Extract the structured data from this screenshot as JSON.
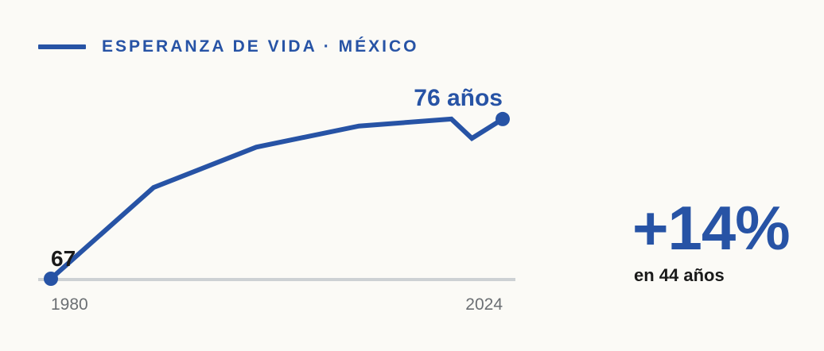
{
  "colors": {
    "series": "#2753a5",
    "baseline": "#cdd1d4",
    "axis_text": "#6b6f73",
    "dark_text": "#1a1a1a"
  },
  "legend": {
    "label": "ESPERANZA DE VIDA · MÉXICO"
  },
  "chart_data": {
    "type": "line",
    "series": [
      {
        "name": "ESPERANZA DE VIDA · MÉXICO",
        "x": [
          1980,
          1990,
          2000,
          2010,
          2019,
          2021,
          2024
        ],
        "y": [
          67,
          72.2,
          74.5,
          75.7,
          76.1,
          75.0,
          76.1
        ]
      }
    ],
    "xlim": [
      1980,
      2024
    ],
    "ylim": [
      67,
      77
    ],
    "x_tick_labels": [
      "1980",
      "2024"
    ],
    "annotations": {
      "start_label": "67",
      "end_label": "76 años"
    },
    "grid": false
  },
  "kpi": {
    "value": "+14%",
    "subtitle": "en 44 años"
  }
}
